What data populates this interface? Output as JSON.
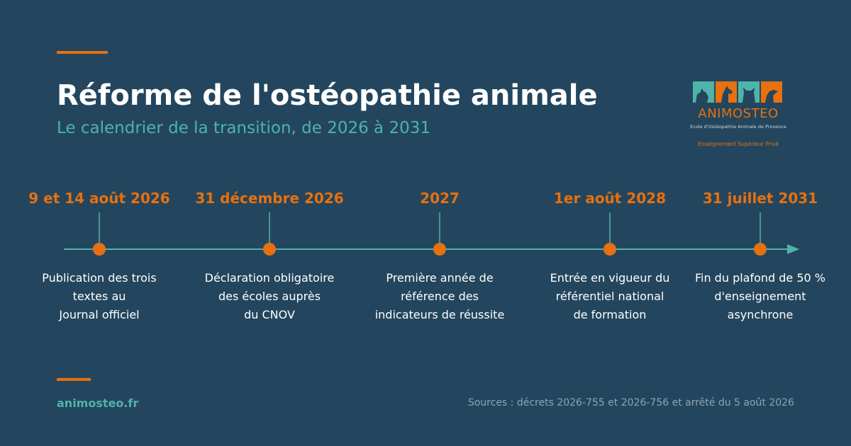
{
  "header": {
    "title": "Réforme de l'ostéopathie animale",
    "subtitle": "Le calendrier de la transition, de 2026 à 2031"
  },
  "logo": {
    "name": "ANIMOSTEO",
    "school": "Ecole d'Ostéopathie Animale de Provence",
    "tagline": "Enseignement Supérieur Privé",
    "tile_icons": [
      "dog-head-icon",
      "horse-head-icon",
      "cat-head-icon",
      "bird-head-icon"
    ]
  },
  "milestones": [
    {
      "date": "9 et 14 août 2026",
      "lines": [
        "Publication des trois",
        "textes au",
        "Journal officiel"
      ]
    },
    {
      "date": "31 décembre 2026",
      "lines": [
        "Déclaration obligatoire",
        "des écoles auprès",
        "du CNOV"
      ]
    },
    {
      "date": "2027",
      "lines": [
        "Première année de",
        "référence des",
        "indicateurs de réussite"
      ]
    },
    {
      "date": "1er août 2028",
      "lines": [
        "Entrée en vigueur du",
        "référentiel national",
        "de formation"
      ]
    },
    {
      "date": "31 juillet 2031",
      "lines": [
        "Fin du plafond de 50 %",
        "d'enseignement",
        "asynchrone"
      ]
    }
  ],
  "footer": {
    "site": "animosteo.fr",
    "sources": "Sources : décrets 2026-755 et 2026-756 et arrêté du 5 août 2026"
  },
  "colors": {
    "background": "#23465e",
    "accent": "#e8700f",
    "teal": "#4fb3aa",
    "text": "#ffffff",
    "muted": "#8fa3b3"
  }
}
